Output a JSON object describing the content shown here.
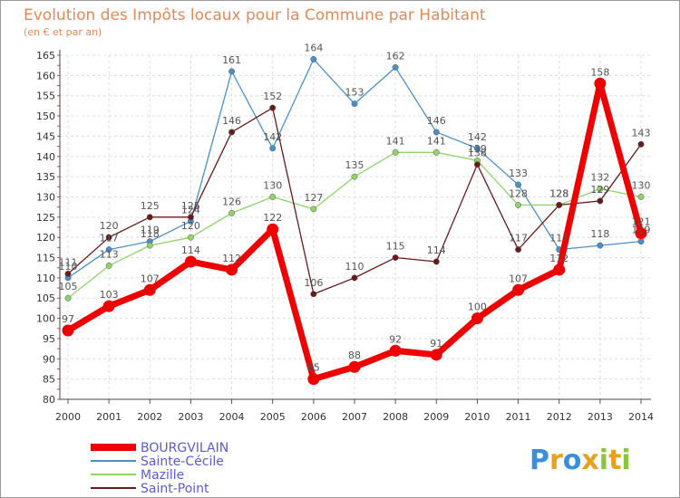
{
  "chart_data": {
    "type": "line",
    "title": "Evolution des Impôts locaux pour la Commune par Habitant",
    "subtitle": "(en € et par an)",
    "x": [
      "2000",
      "2001",
      "2002",
      "2003",
      "2004",
      "2005",
      "2006",
      "2007",
      "2008",
      "2009",
      "2010",
      "2011",
      "2012",
      "2013",
      "2014"
    ],
    "ylim": [
      80,
      165
    ],
    "yticks": [
      80,
      85,
      90,
      95,
      100,
      105,
      110,
      115,
      120,
      125,
      130,
      135,
      140,
      145,
      150,
      155,
      160,
      165
    ],
    "grid": true,
    "legend_position": "bottom-left",
    "series": [
      {
        "name": "BOURGVILAIN",
        "color": "#ee0000",
        "values": [
          97,
          103,
          107,
          114,
          112,
          122,
          85,
          88,
          92,
          91,
          100,
          107,
          112,
          158,
          121
        ]
      },
      {
        "name": "Sainte-Cécile",
        "color": "#4a90c8",
        "values": [
          110,
          117,
          119,
          124,
          161,
          142,
          164,
          153,
          162,
          146,
          142,
          133,
          117,
          118,
          119
        ]
      },
      {
        "name": "Mazille",
        "color": "#8fd46a",
        "values": [
          105,
          113,
          118,
          120,
          126,
          130,
          127,
          135,
          141,
          141,
          139,
          128,
          128,
          132,
          130
        ]
      },
      {
        "name": "Saint-Point",
        "color": "#6a1a1a",
        "values": [
          111,
          120,
          125,
          125,
          146,
          152,
          106,
          110,
          115,
          114,
          138,
          117,
          128,
          129,
          143
        ]
      }
    ],
    "data_labels": {
      "BOURGVILAIN": [
        "97",
        "103",
        "107",
        "114",
        "112",
        "122",
        "85",
        "88",
        "92",
        "91",
        "100",
        "107",
        "112",
        "158",
        "121"
      ],
      "Sainte-Cécile": [
        "110",
        "117",
        "119",
        "124",
        "161",
        "142",
        "164",
        "153",
        "162",
        "146",
        "142",
        "133",
        "117",
        "118",
        "119"
      ],
      "Mazille": [
        "105",
        "113",
        "118",
        "120",
        "126",
        "130",
        "127",
        "135",
        "141",
        "141",
        "139",
        "128",
        "128",
        "132",
        "130"
      ],
      "Saint-Point": [
        "111",
        "120",
        "125",
        "125",
        "146",
        "152",
        "106",
        "110",
        "115",
        "114",
        "138",
        "117",
        "128",
        "129",
        "143"
      ]
    }
  },
  "brand": {
    "letters": [
      "P",
      "r",
      "o",
      "x",
      "i",
      "t",
      "i"
    ],
    "colors": [
      "#3a8fd8",
      "#e8a020",
      "#3a8fd8",
      "#e8a020",
      "#8cc63e",
      "#e8a020",
      "#8cc63e"
    ]
  }
}
